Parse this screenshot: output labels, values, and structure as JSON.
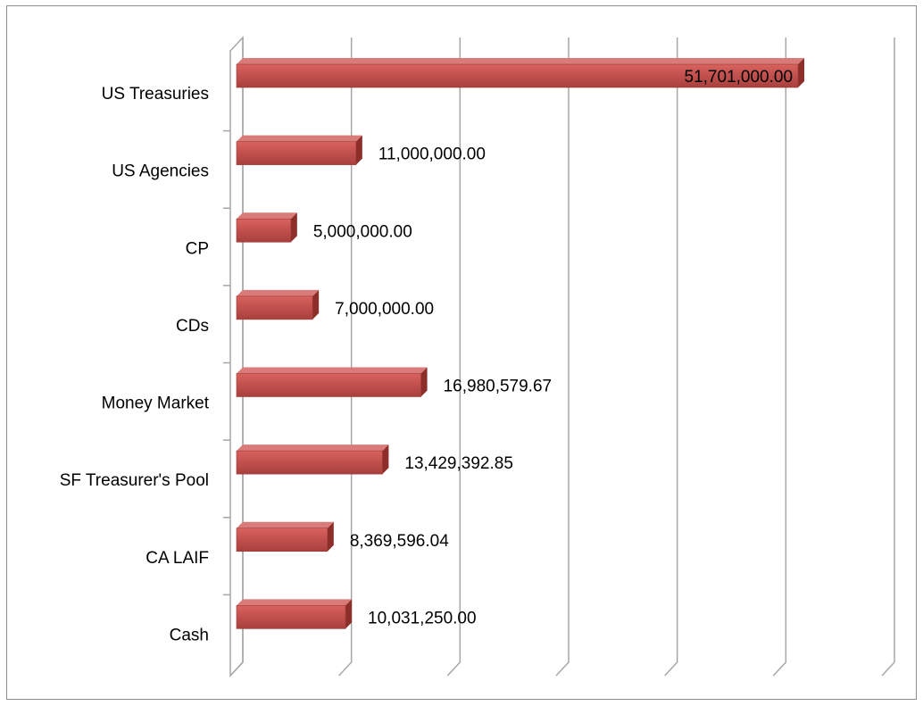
{
  "chart_data": {
    "type": "bar",
    "orientation": "horizontal",
    "three_d": true,
    "categories": [
      "US Treasuries",
      "US Agencies",
      "CP",
      "CDs",
      "Money Market",
      "SF Treasurer's Pool",
      "CA LAIF",
      "Cash"
    ],
    "values": [
      51701000,
      11000000,
      5000000,
      7000000,
      16980579.67,
      13429392.85,
      8369596.04,
      10031250
    ],
    "value_labels": [
      "51,701,000.00",
      "11,000,000.00",
      "5,000,000.00",
      "7,000,000.00",
      "16,980,579.67",
      "13,429,392.85",
      "8,369,596.04",
      "10,031,250.00"
    ],
    "color": "#c0504d",
    "xlim": [
      0,
      60000000
    ],
    "xticks": [
      0,
      10000000,
      20000000,
      30000000,
      40000000,
      50000000,
      60000000
    ],
    "grid": true
  }
}
